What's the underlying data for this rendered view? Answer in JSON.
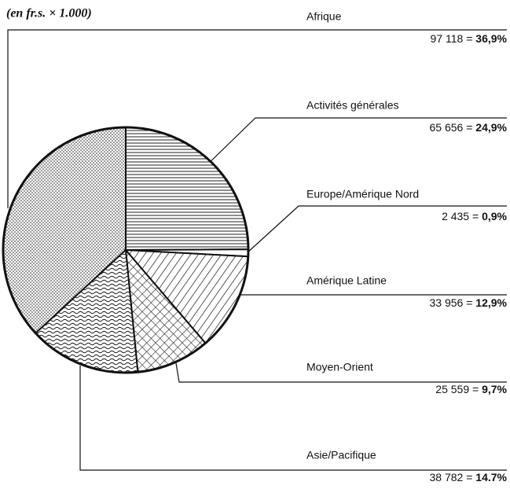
{
  "chart_data": {
    "type": "pie",
    "title": "(en fr.s. × 1.000)",
    "categories": [
      "Afrique",
      "Activités générales",
      "Europe/Amérique Nord",
      "Amérique Latine",
      "Moyen-Orient",
      "Asie/Pacifique"
    ],
    "values": [
      97118,
      65656,
      2435,
      33956,
      25559,
      38782
    ],
    "value_labels": [
      "97 118",
      "65 656",
      "2 435",
      "33 956",
      "25 559",
      "38 782"
    ],
    "separator": "=",
    "percentages": [
      36.9,
      24.9,
      0.9,
      12.9,
      9.7,
      14.7
    ],
    "percentage_labels": [
      "36,9%",
      "24,9%",
      "0,9%",
      "12,9%",
      "9,7%",
      "14.7%"
    ]
  }
}
